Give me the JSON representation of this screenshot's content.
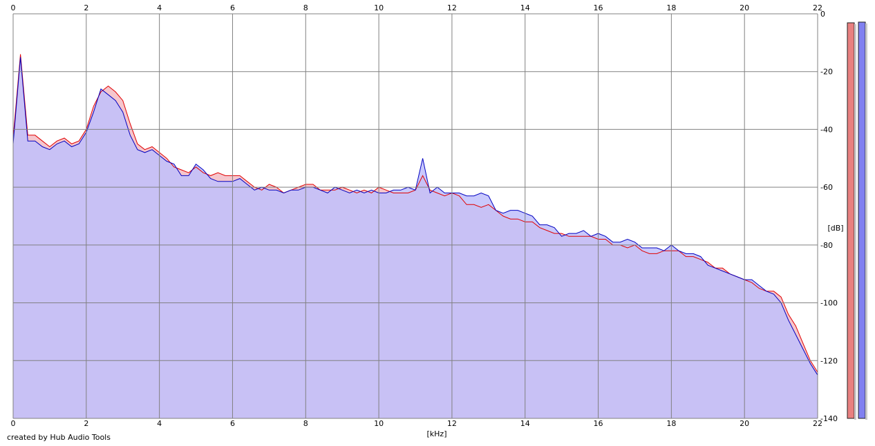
{
  "footer_text": "created by Hub Audio Tools",
  "colors": {
    "left_channel": "#e00000",
    "right_channel": "#0000c0",
    "fill_right": "#c0c0fb",
    "fill_left": "#f4c0c8",
    "grid": "#808080",
    "meter_left": "#e88080",
    "meter_right": "#8080f0"
  },
  "chart_data": {
    "type": "area",
    "title": "",
    "xlabel": "[kHz]",
    "ylabel": "[dB]",
    "xlim": [
      0,
      22
    ],
    "ylim": [
      -140,
      0
    ],
    "x_ticks": [
      "0",
      "2",
      "4",
      "6",
      "8",
      "10",
      "12",
      "14",
      "16",
      "18",
      "20",
      "22"
    ],
    "y_ticks": [
      "0",
      "-20",
      "-40",
      "-60",
      "-80",
      "-100",
      "-120",
      "-140"
    ],
    "grid": true,
    "legend": "none",
    "x": [
      0,
      0.2,
      0.4,
      0.6,
      0.8,
      1.0,
      1.2,
      1.4,
      1.6,
      1.8,
      2.0,
      2.2,
      2.4,
      2.6,
      2.8,
      3.0,
      3.2,
      3.4,
      3.6,
      3.8,
      4.0,
      4.2,
      4.4,
      4.6,
      4.8,
      5.0,
      5.2,
      5.4,
      5.6,
      5.8,
      6.0,
      6.2,
      6.4,
      6.6,
      6.8,
      7.0,
      7.2,
      7.4,
      7.6,
      7.8,
      8.0,
      8.2,
      8.4,
      8.6,
      8.8,
      9.0,
      9.2,
      9.4,
      9.6,
      9.8,
      10.0,
      10.2,
      10.4,
      10.6,
      10.8,
      11.0,
      11.2,
      11.4,
      11.6,
      11.8,
      12.0,
      12.2,
      12.4,
      12.6,
      12.8,
      13.0,
      13.2,
      13.4,
      13.6,
      13.8,
      14.0,
      14.2,
      14.4,
      14.6,
      14.8,
      15.0,
      15.2,
      15.4,
      15.6,
      15.8,
      16.0,
      16.2,
      16.4,
      16.6,
      16.8,
      17.0,
      17.2,
      17.4,
      17.6,
      17.8,
      18.0,
      18.2,
      18.4,
      18.6,
      18.8,
      19.0,
      19.2,
      19.4,
      19.6,
      19.8,
      20.0,
      20.2,
      20.4,
      20.6,
      20.8,
      21.0,
      21.2,
      21.4,
      21.6,
      21.8,
      22.0
    ],
    "series": [
      {
        "values": [
          -43,
          -14,
          -42,
          -42,
          -44,
          -46,
          -44,
          -43,
          -45,
          -44,
          -40,
          -32,
          -27,
          -25,
          -27,
          -30,
          -38,
          -45,
          -47,
          -46,
          -48,
          -50,
          -53,
          -54,
          -55,
          -53,
          -55,
          -56,
          -55,
          -56,
          -56,
          -56,
          -58,
          -60,
          -61,
          -59,
          -60,
          -62,
          -61,
          -60,
          -59,
          -59,
          -61,
          -61,
          -61,
          -60,
          -61,
          -62,
          -61,
          -62,
          -60,
          -61,
          -62,
          -62,
          -62,
          -61,
          -56,
          -61,
          -62,
          -63,
          -62,
          -63,
          -66,
          -66,
          -67,
          -66,
          -68,
          -70,
          -71,
          -71,
          -72,
          -72,
          -74,
          -75,
          -76,
          -76,
          -77,
          -77,
          -77,
          -77,
          -78,
          -78,
          -80,
          -80,
          -81,
          -80,
          -82,
          -83,
          -83,
          -82,
          -82,
          -82,
          -84,
          -84,
          -85,
          -86,
          -88,
          -88,
          -90,
          -91,
          -92,
          -93,
          -95,
          -96,
          -96,
          -98,
          -104,
          -108,
          -114,
          -120,
          -124
        ]
      },
      {
        "values": [
          -45,
          -15,
          -44,
          -44,
          -46,
          -47,
          -45,
          -44,
          -46,
          -45,
          -41,
          -34,
          -26,
          -28,
          -30,
          -34,
          -42,
          -47,
          -48,
          -47,
          -49,
          -51,
          -52,
          -56,
          -56,
          -52,
          -54,
          -57,
          -58,
          -58,
          -58,
          -57,
          -59,
          -61,
          -60,
          -61,
          -61,
          -62,
          -61,
          -61,
          -60,
          -60,
          -61,
          -62,
          -60,
          -61,
          -62,
          -61,
          -62,
          -61,
          -62,
          -62,
          -61,
          -61,
          -60,
          -61,
          -50,
          -62,
          -60,
          -62,
          -62,
          -62,
          -63,
          -63,
          -62,
          -63,
          -68,
          -69,
          -68,
          -68,
          -69,
          -70,
          -73,
          -73,
          -74,
          -77,
          -76,
          -76,
          -75,
          -77,
          -76,
          -77,
          -79,
          -79,
          -78,
          -79,
          -81,
          -81,
          -81,
          -82,
          -80,
          -82,
          -83,
          -83,
          -84,
          -87,
          -88,
          -89,
          -90,
          -91,
          -92,
          -92,
          -94,
          -96,
          -97,
          -100,
          -106,
          -111,
          -116,
          -121,
          -125
        ]
      }
    ]
  }
}
